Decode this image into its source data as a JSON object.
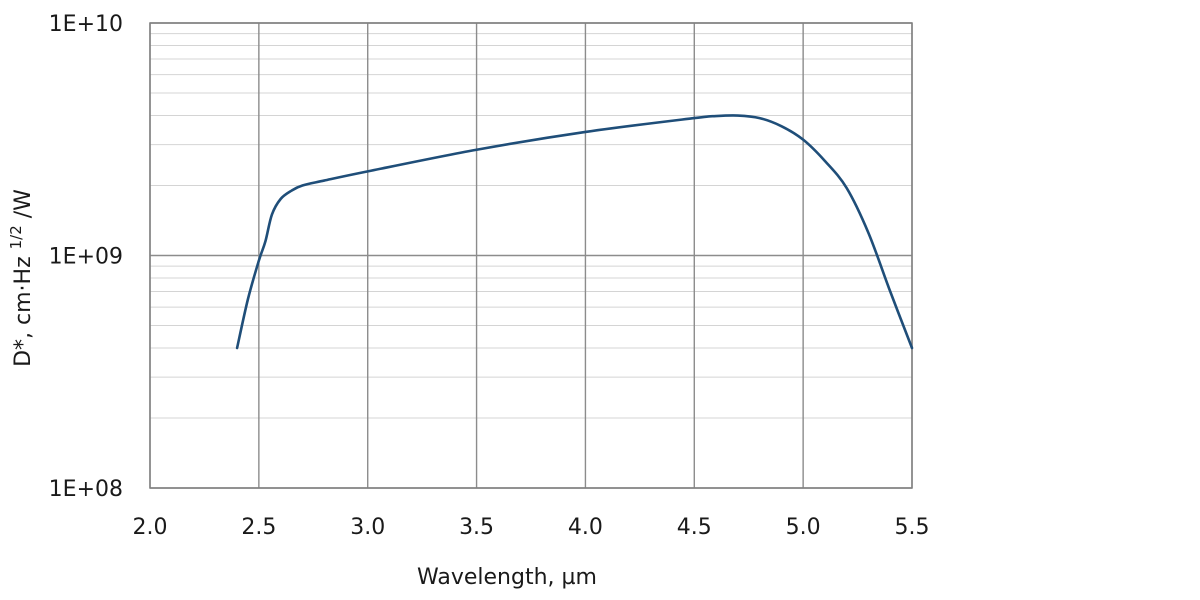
{
  "chart_data": {
    "type": "line",
    "title": "",
    "xlabel": "Wavelength, µm",
    "ylabel": {
      "text": "D*, cm·Hz",
      "sup": "1/2",
      "suffix": "/W"
    },
    "y_scale": "log",
    "xlim": [
      2.0,
      5.5
    ],
    "ylim": [
      100000000,
      10000000000
    ],
    "grid": true,
    "legend": "none",
    "line_color": "#1f4e79",
    "x_ticks": [
      "2.0",
      "2.5",
      "3.0",
      "3.5",
      "4.0",
      "4.5",
      "5.0",
      "5.5"
    ],
    "y_ticks": [
      "1E+08",
      "1E+09",
      "1E+10"
    ],
    "series": [
      {
        "x": [
          2.4,
          2.45,
          2.5,
          2.53,
          2.56,
          2.6,
          2.65,
          2.7,
          2.8,
          3.0,
          3.5,
          4.0,
          4.5,
          4.6,
          4.7,
          4.8,
          4.9,
          5.0,
          5.1,
          5.2,
          5.3,
          5.4,
          5.5
        ],
        "y": [
          400000000,
          650000000,
          950000000,
          1150000000,
          1500000000,
          1750000000,
          1900000000,
          2000000000,
          2100000000,
          2300000000,
          2850000000,
          3400000000,
          3900000000,
          3980000000,
          4000000000,
          3900000000,
          3600000000,
          3150000000,
          2550000000,
          1950000000,
          1250000000,
          700000000,
          400000000
        ]
      }
    ]
  }
}
